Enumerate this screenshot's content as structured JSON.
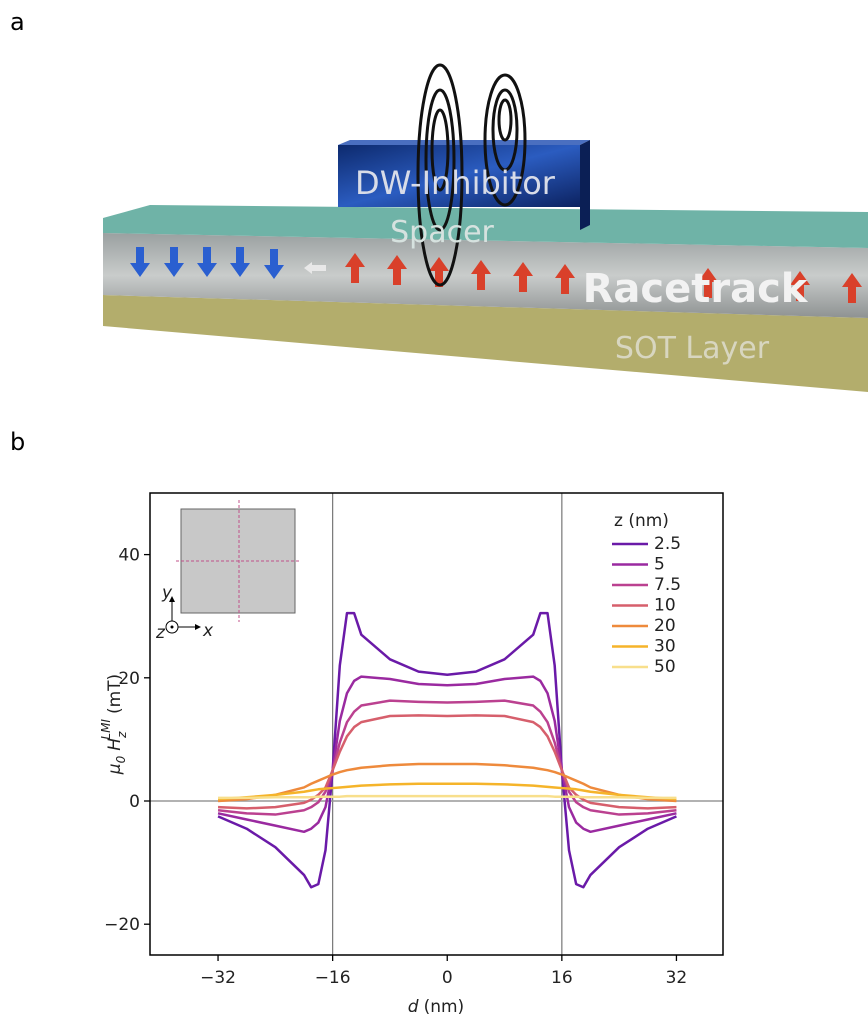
{
  "panels": {
    "a": "a",
    "b": "b"
  },
  "illustration": {
    "inhibitor": "DW-Inhibitor",
    "spacer": "Spacer",
    "racetrack": "Racetrack",
    "sot": "SOT Layer"
  },
  "chart_data": {
    "type": "line",
    "xlabel": {
      "var": "d",
      "unit": "(nm)"
    },
    "ylabel": {
      "mu": "μ",
      "mu_sub": "0",
      "H": "H",
      "sub": "z",
      "sup": "LMI",
      "unit": "(mT)"
    },
    "legend_title": "z (nm)",
    "inset": {
      "y": "y",
      "z": "z",
      "x": "x"
    },
    "x": [
      -32,
      -28,
      -24,
      -20,
      -19,
      -18,
      -17,
      -16,
      -15,
      -14,
      -13,
      -12,
      -8,
      -4,
      0,
      4,
      8,
      12,
      13,
      14,
      15,
      16,
      17,
      18,
      19,
      20,
      24,
      28,
      32
    ],
    "series": [
      {
        "name": "2.5",
        "color": "#6a1aa8",
        "values": [
          -2.5,
          -4.5,
          -7.5,
          -12,
          -14,
          -13.5,
          -8,
          5,
          22,
          30.5,
          30.5,
          27,
          23,
          21,
          20.5,
          21,
          23,
          27,
          30.5,
          30.5,
          22,
          5,
          -8,
          -13.5,
          -14,
          -12,
          -7.5,
          -4.5,
          -2.5
        ]
      },
      {
        "name": "5",
        "color": "#9a2aa0",
        "values": [
          -2,
          -3,
          -4,
          -5,
          -4.5,
          -3.5,
          -1,
          5,
          13,
          17.5,
          19.5,
          20.2,
          19.8,
          19,
          18.8,
          19,
          19.8,
          20.2,
          19.5,
          17.5,
          13,
          5,
          -1,
          -3.5,
          -4.5,
          -5,
          -4,
          -3,
          -2
        ]
      },
      {
        "name": "7.5",
        "color": "#bb4190",
        "values": [
          -1.5,
          -2,
          -2.2,
          -1.5,
          -1,
          -0.2,
          1.5,
          5,
          9.5,
          12.8,
          14.5,
          15.5,
          16.3,
          16.1,
          16,
          16.1,
          16.3,
          15.5,
          14.5,
          12.8,
          9.5,
          5,
          1.5,
          -0.2,
          -1,
          -1.5,
          -2.2,
          -2,
          -1.5
        ]
      },
      {
        "name": "10",
        "color": "#d65f6c",
        "values": [
          -1,
          -1.2,
          -1,
          -0.3,
          0.2,
          1,
          2.2,
          5,
          8,
          10.5,
          12,
          12.8,
          13.8,
          13.9,
          13.8,
          13.9,
          13.8,
          12.8,
          12,
          10.5,
          8,
          5,
          2.2,
          1,
          0.2,
          -0.3,
          -1,
          -1.2,
          -1
        ]
      },
      {
        "name": "20",
        "color": "#ee8a3c",
        "values": [
          0,
          0.3,
          1,
          2.2,
          2.8,
          3.3,
          3.8,
          4.3,
          4.7,
          5,
          5.2,
          5.4,
          5.8,
          6,
          6,
          6,
          5.8,
          5.4,
          5.2,
          5,
          4.7,
          4.3,
          3.8,
          3.3,
          2.8,
          2.2,
          1,
          0.3,
          0
        ]
      },
      {
        "name": "30",
        "color": "#f5b42a",
        "values": [
          0.3,
          0.6,
          1,
          1.5,
          1.7,
          1.9,
          2,
          2.1,
          2.2,
          2.3,
          2.4,
          2.5,
          2.7,
          2.8,
          2.8,
          2.8,
          2.7,
          2.5,
          2.4,
          2.3,
          2.2,
          2.1,
          2,
          1.9,
          1.7,
          1.5,
          1,
          0.6,
          0.3
        ]
      },
      {
        "name": "50",
        "color": "#f8df8c",
        "values": [
          0.5,
          0.5,
          0.6,
          0.6,
          0.6,
          0.7,
          0.7,
          0.7,
          0.7,
          0.8,
          0.8,
          0.8,
          0.8,
          0.8,
          0.8,
          0.8,
          0.8,
          0.8,
          0.8,
          0.8,
          0.7,
          0.7,
          0.7,
          0.7,
          0.6,
          0.6,
          0.6,
          0.5,
          0.5
        ]
      }
    ],
    "xlim": [
      -41.5,
      38.5
    ],
    "ylim": [
      -25,
      50
    ],
    "xticks": [
      {
        "value": -32,
        "label": "−32"
      },
      {
        "value": -16,
        "label": "−16"
      },
      0,
      16,
      32
    ],
    "yticks": [
      {
        "value": -20,
        "label": "−20"
      },
      0,
      20,
      40
    ],
    "vlines": [
      -16,
      16
    ],
    "hlines": [
      0
    ]
  }
}
